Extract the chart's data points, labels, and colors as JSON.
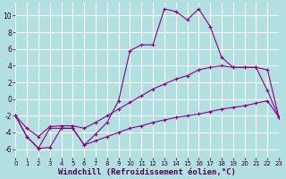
{
  "background_color": "#b2e0e0",
  "grid_color": "#ffffff",
  "line_color": "#880088",
  "xlabel": "Windchill (Refroidissement éolien,°C)",
  "xlabel_fontsize": 6.5,
  "ylim": [
    -7,
    11.5
  ],
  "xlim": [
    0,
    23
  ],
  "yticks": [
    -6,
    -4,
    -2,
    0,
    2,
    4,
    6,
    8,
    10
  ],
  "xticks": [
    0,
    1,
    2,
    3,
    4,
    5,
    6,
    7,
    8,
    9,
    10,
    11,
    12,
    13,
    14,
    15,
    16,
    17,
    18,
    19,
    20,
    21,
    22,
    23
  ],
  "series": [
    {
      "x": [
        0,
        1,
        2,
        3,
        4,
        5,
        6,
        7,
        8,
        9,
        10,
        11,
        12,
        13,
        14,
        15,
        16,
        17,
        18,
        19,
        20,
        21,
        22,
        23
      ],
      "y": [
        -2.0,
        -4.5,
        -5.9,
        -3.5,
        -3.5,
        -3.5,
        -5.5,
        -4.2,
        -2.8,
        -0.2,
        5.8,
        6.5,
        6.5,
        10.8,
        10.5,
        9.5,
        10.8,
        8.7,
        5.0,
        3.8,
        3.8,
        3.8,
        1.0,
        -2.2
      ]
    },
    {
      "x": [
        0,
        1,
        2,
        3,
        4,
        5,
        6,
        7,
        8,
        9,
        10,
        11,
        12,
        13,
        14,
        15,
        16,
        17,
        18,
        19,
        20,
        21,
        22,
        23
      ],
      "y": [
        -2.0,
        -3.5,
        -4.5,
        -3.3,
        -3.2,
        -3.2,
        -3.5,
        -2.8,
        -2.0,
        -1.2,
        -0.4,
        0.4,
        1.2,
        1.8,
        2.4,
        2.8,
        3.5,
        3.8,
        4.0,
        3.8,
        3.8,
        3.8,
        3.5,
        -2.2
      ]
    },
    {
      "x": [
        0,
        1,
        2,
        3,
        4,
        5,
        6,
        7,
        8,
        9,
        10,
        11,
        12,
        13,
        14,
        15,
        16,
        17,
        18,
        19,
        20,
        21,
        22,
        23
      ],
      "y": [
        -2.0,
        -4.5,
        -5.9,
        -5.8,
        -3.5,
        -3.5,
        -5.5,
        -5.0,
        -4.5,
        -4.0,
        -3.5,
        -3.2,
        -2.8,
        -2.5,
        -2.2,
        -2.0,
        -1.8,
        -1.5,
        -1.2,
        -1.0,
        -0.8,
        -0.5,
        -0.2,
        -2.2
      ]
    }
  ]
}
